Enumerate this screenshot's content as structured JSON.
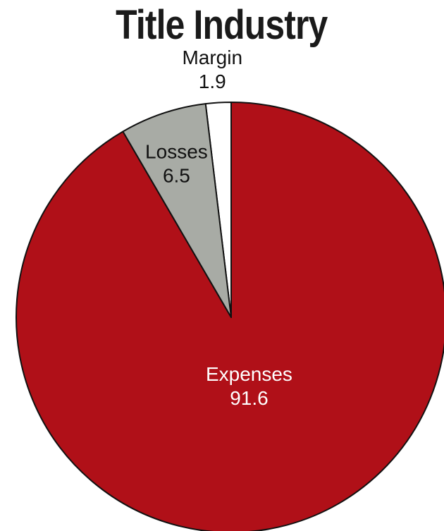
{
  "chart_data": {
    "type": "pie",
    "title": "Title Industry",
    "slices": [
      {
        "label": "Margin",
        "value": 1.9,
        "value_text": "1.9",
        "color": "#ffffff",
        "text_color": "#111111"
      },
      {
        "label": "Expenses",
        "value": 91.6,
        "value_text": "91.6",
        "color": "#b01018",
        "text_color": "#ffffff"
      },
      {
        "label": "Losses",
        "value": 6.5,
        "value_text": "6.5",
        "color": "#a8aba5",
        "text_color": "#111111"
      }
    ],
    "stroke_color": "#111111"
  }
}
